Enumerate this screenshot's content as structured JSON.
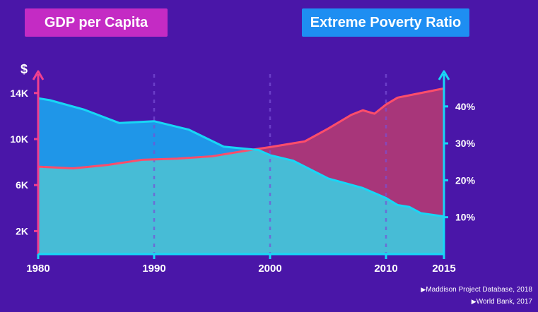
{
  "badges": {
    "gdp": "GDP per Capita",
    "poverty": "Extreme Poverty Ratio"
  },
  "colors": {
    "background": "#4a16a8",
    "gdp_axis": "#f0408f",
    "poverty_axis": "#18d6f6",
    "gdp_badge": "#c42bc4",
    "poverty_badge": "#1e8ef2",
    "poverty_fill": "#1f96e8",
    "gdp_fill": "#a8367a",
    "gdp_line": "#ff4d6a",
    "overlap_fill": "#47bcd6"
  },
  "sources": [
    "Maddison Project Database, 2018",
    "World Bank, 2017"
  ],
  "chart_data": {
    "type": "area",
    "left_axis": {
      "label": "$",
      "ticks": [
        2000,
        6000,
        10000,
        14000
      ],
      "tick_labels": [
        "2K",
        "6K",
        "10K",
        "14K"
      ],
      "ylim": [
        0,
        14600
      ]
    },
    "right_axis": {
      "ticks": [
        10,
        20,
        30,
        40
      ],
      "tick_labels": [
        "10%",
        "20%",
        "30%",
        "40%"
      ],
      "ylim": [
        0,
        45.5
      ]
    },
    "x_axis": {
      "ticks": [
        1980,
        1990,
        2000,
        2010,
        2015
      ],
      "tick_labels": [
        "1980",
        "1990",
        "2000",
        "2010",
        "2015"
      ],
      "xlim": [
        1980,
        2015
      ],
      "dashed_gridlines": [
        1990,
        2000,
        2010
      ]
    },
    "series": [
      {
        "name": "GDP per Capita",
        "axis": "left",
        "x": [
          1980,
          1983,
          1986,
          1989,
          1992,
          1995,
          1998,
          2000,
          2003,
          2005,
          2007,
          2008,
          2009,
          2010,
          2011,
          2013,
          2015
        ],
        "values": [
          7600,
          7450,
          7750,
          8200,
          8300,
          8500,
          9000,
          9300,
          9800,
          10900,
          12100,
          12500,
          12200,
          13000,
          13600,
          14000,
          14400
        ]
      },
      {
        "name": "Extreme Poverty Ratio",
        "axis": "right",
        "x": [
          1980,
          1981,
          1984,
          1987,
          1990,
          1993,
          1996,
          1999,
          2000,
          2002,
          2005,
          2008,
          2010,
          2011,
          2012,
          2013,
          2015
        ],
        "values": [
          42.2,
          41.7,
          39.1,
          35.5,
          36,
          33.7,
          29.1,
          28.2,
          26.8,
          25.3,
          20.5,
          17.9,
          15.2,
          13.3,
          12.8,
          11.1,
          10.2
        ]
      }
    ]
  }
}
